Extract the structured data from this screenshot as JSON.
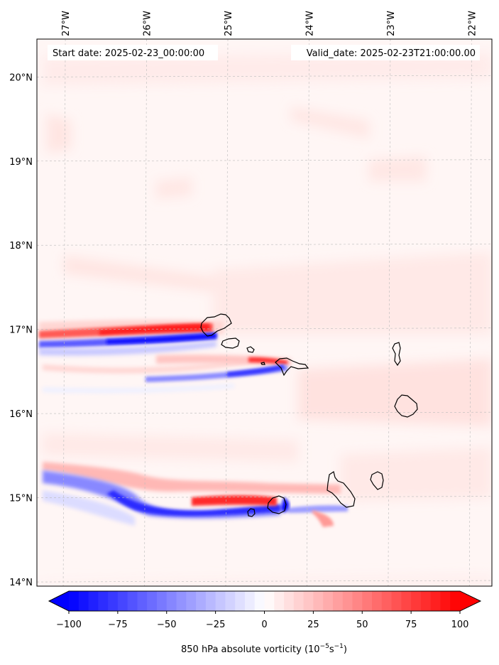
{
  "header": {
    "start_date": "Start date: 2025-02-23_00:00:00",
    "valid_date": "Valid_date: 2025-02-23T21:00:00.00"
  },
  "map": {
    "extent_lon": [
      -27.35,
      -21.75
    ],
    "extent_lat": [
      13.95,
      20.45
    ],
    "lon_ticks": [
      {
        "value": -27,
        "label": "27°W"
      },
      {
        "value": -26,
        "label": "26°W"
      },
      {
        "value": -25,
        "label": "25°W"
      },
      {
        "value": -24,
        "label": "24°W"
      },
      {
        "value": -23,
        "label": "23°W"
      },
      {
        "value": -22,
        "label": "22°W"
      }
    ],
    "lat_ticks": [
      {
        "value": 20,
        "label": "20°N"
      },
      {
        "value": 19,
        "label": "19°N"
      },
      {
        "value": 18,
        "label": "18°N"
      },
      {
        "value": 17,
        "label": "17°N"
      },
      {
        "value": 16,
        "label": "16°N"
      },
      {
        "value": 15,
        "label": "15°N"
      },
      {
        "value": 14,
        "label": "14°N"
      }
    ],
    "islands": [
      "Santo Antão",
      "São Vicente",
      "Santa Luzia",
      "São Nicolau",
      "Sal",
      "Boa Vista",
      "Brava",
      "Fogo",
      "Santiago",
      "Maio"
    ]
  },
  "colorbar": {
    "min": -100,
    "max": 100,
    "tick_values": [
      -100,
      -75,
      -50,
      -25,
      0,
      25,
      50,
      75,
      100
    ],
    "tick_labels": [
      "−100",
      "−75",
      "−50",
      "−25",
      "0",
      "25",
      "50",
      "75",
      "100"
    ],
    "label": "850 hPa absolute vorticity (10",
    "label_exp1": "−5",
    "label_mid": "s",
    "label_exp2": "−1",
    "label_end": ")",
    "neg_color": "#0000ff",
    "pos_color": "#ff0000",
    "mid_color": "#ffffff"
  }
}
